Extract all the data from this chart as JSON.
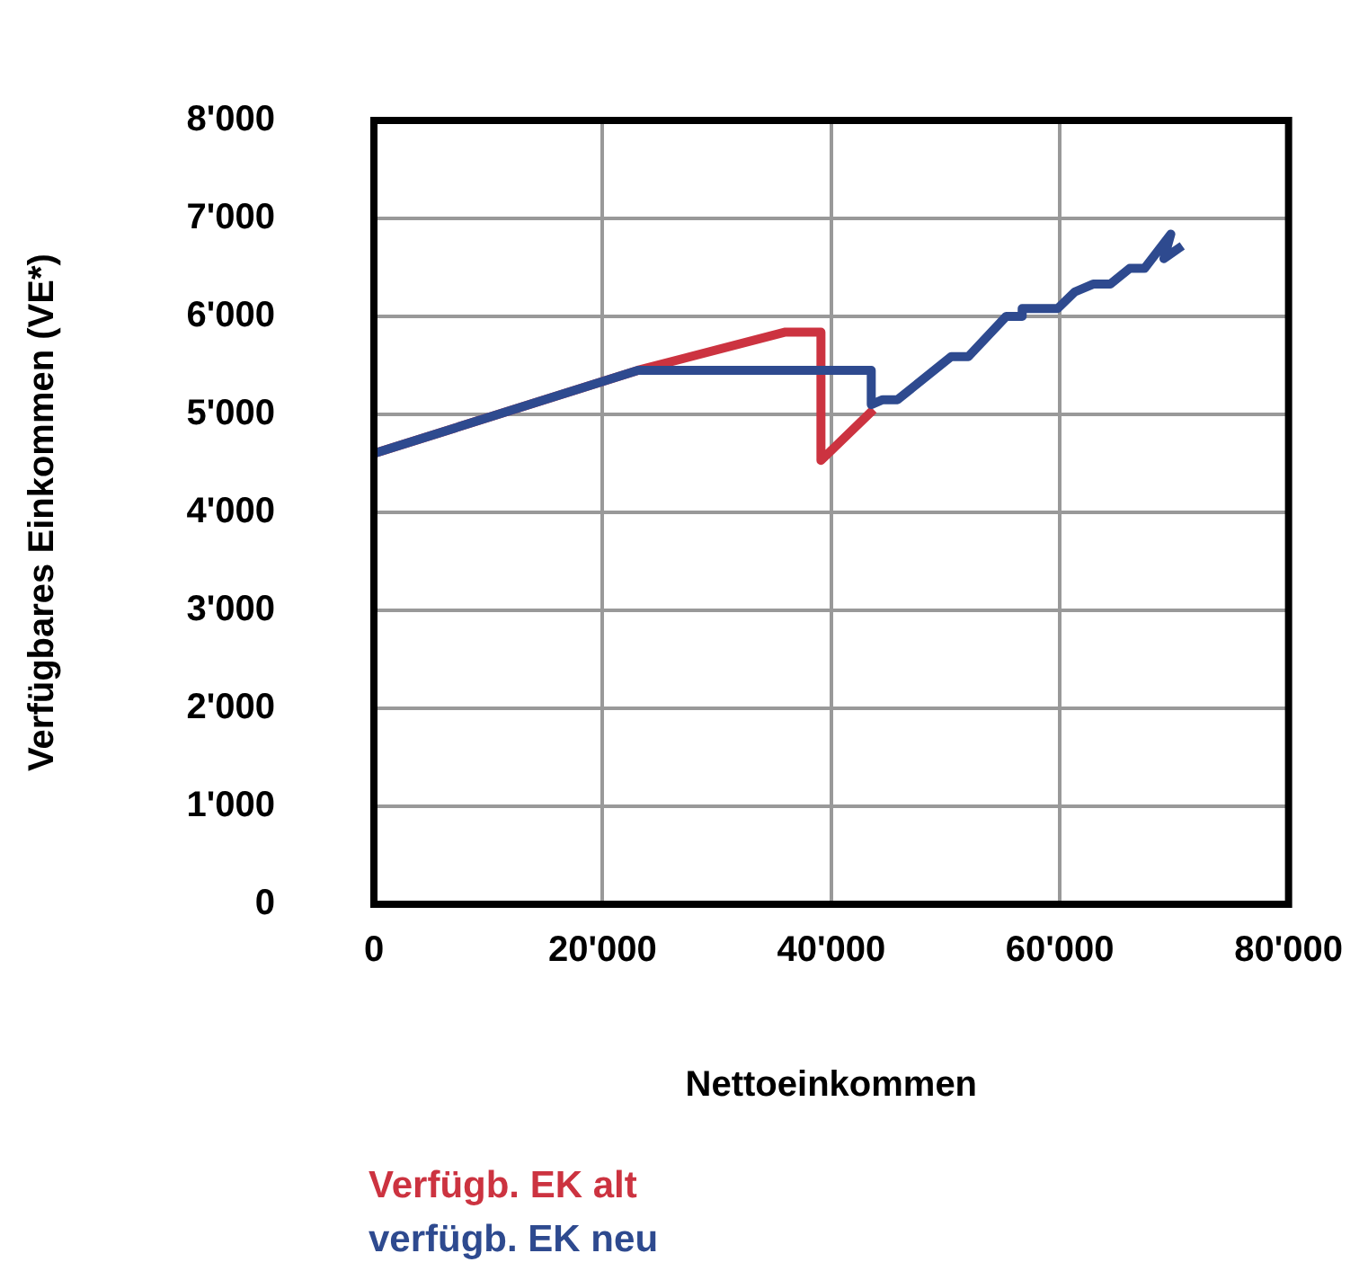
{
  "chart_data": {
    "type": "line",
    "xlabel": "Nettoeinkommen",
    "ylabel": "Verfügbares Einkommen (VE*)",
    "xlim": [
      0,
      80000
    ],
    "xticks": [
      0,
      {
        "value": 20000,
        "label": "20'000"
      },
      {
        "value": 40000,
        "label": "40'000"
      },
      {
        "value": 60000,
        "label": "60'000"
      },
      {
        "value": 80000,
        "label": "80'000"
      }
    ],
    "ylim": [
      0,
      8000
    ],
    "yticks": [
      0,
      {
        "value": 1000,
        "label": "1'000"
      },
      {
        "value": 2000,
        "label": "2'000"
      },
      {
        "value": 3000,
        "label": "3'000"
      },
      {
        "value": 4000,
        "label": "4'000"
      },
      {
        "value": 5000,
        "label": "5'000"
      },
      {
        "value": 6000,
        "label": "6'000"
      },
      {
        "value": 7000,
        "label": "7'000"
      },
      {
        "value": 8000,
        "label": "8'000"
      }
    ],
    "grid": true,
    "legend": "bottom",
    "marker": "none",
    "line_style": "solid",
    "series": [
      {
        "name": "Verfügb. EK alt",
        "color": "#cc3340",
        "x": [
          0,
          23100,
          36000,
          39100,
          39100,
          43700
        ],
        "values": [
          4600,
          5450,
          5840,
          5840,
          4530,
          5050
        ]
      },
      {
        "name": "verfügb. EK neu",
        "color": "#2e4a8f",
        "x": [
          0,
          23100,
          43500,
          43500,
          44500,
          45800,
          50500,
          52000,
          55300,
          56700,
          56700,
          59800,
          61300,
          62900,
          64400,
          66100,
          67400,
          69700,
          69100,
          70700
        ],
        "values": [
          4600,
          5450,
          5450,
          5100,
          5150,
          5150,
          5590,
          5590,
          6000,
          6000,
          6080,
          6080,
          6250,
          6330,
          6330,
          6490,
          6490,
          6840,
          6590,
          6720
        ]
      }
    ]
  }
}
